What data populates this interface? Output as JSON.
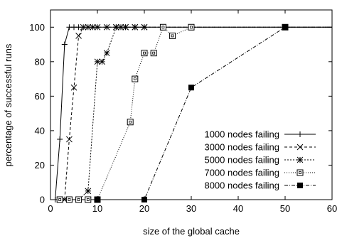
{
  "chart_data": {
    "type": "line",
    "title": "",
    "xlabel": "size of the global cache",
    "ylabel": "percentage of successful runs",
    "xlim": [
      0,
      60
    ],
    "ylim": [
      0,
      110
    ],
    "xticks": [
      0,
      10,
      20,
      30,
      40,
      50,
      60
    ],
    "yticks": [
      0,
      20,
      40,
      60,
      80,
      100
    ],
    "legend_position": "bottom-right",
    "grid": false,
    "series": [
      {
        "name": "1000 nodes failing",
        "line_style": "solid",
        "marker": "plus",
        "x": [
          1,
          2,
          3,
          4,
          5,
          6,
          7,
          8,
          9,
          10,
          12,
          14,
          16,
          18,
          20,
          24,
          30,
          50,
          60
        ],
        "y": [
          0,
          35,
          90,
          100,
          100,
          100,
          100,
          100,
          100,
          100,
          100,
          100,
          100,
          100,
          100,
          100,
          100,
          100,
          100
        ]
      },
      {
        "name": "3000 nodes failing",
        "line_style": "dashed",
        "marker": "x",
        "x": [
          2,
          3,
          4,
          5,
          6,
          7,
          8,
          9,
          10,
          12,
          14,
          16,
          18,
          20,
          24,
          30,
          50,
          60
        ],
        "y": [
          0,
          0,
          35,
          65,
          95,
          100,
          100,
          100,
          100,
          100,
          100,
          100,
          100,
          100,
          100,
          100,
          100,
          100
        ]
      },
      {
        "name": "5000 nodes failing",
        "line_style": "dotted",
        "marker": "star",
        "x": [
          2,
          4,
          6,
          8,
          10,
          11,
          12,
          14,
          15,
          16,
          18,
          20,
          24,
          30,
          50,
          60
        ],
        "y": [
          0,
          0,
          0,
          5,
          80,
          80,
          85,
          100,
          100,
          100,
          100,
          100,
          100,
          100,
          100,
          100
        ]
      },
      {
        "name": "7000 nodes failing",
        "line_style": "fine-dotted",
        "marker": "open-square",
        "x": [
          2,
          4,
          6,
          8,
          10,
          17,
          18,
          20,
          22,
          24,
          26,
          30,
          50,
          60
        ],
        "y": [
          0,
          0,
          0,
          0,
          0,
          45,
          70,
          85,
          85,
          100,
          95,
          100,
          100,
          100
        ]
      },
      {
        "name": "8000 nodes failing",
        "line_style": "dash-dot",
        "marker": "filled-square",
        "x": [
          10,
          20,
          30,
          50,
          60
        ],
        "y": [
          0,
          0,
          65,
          100,
          100
        ]
      }
    ]
  }
}
